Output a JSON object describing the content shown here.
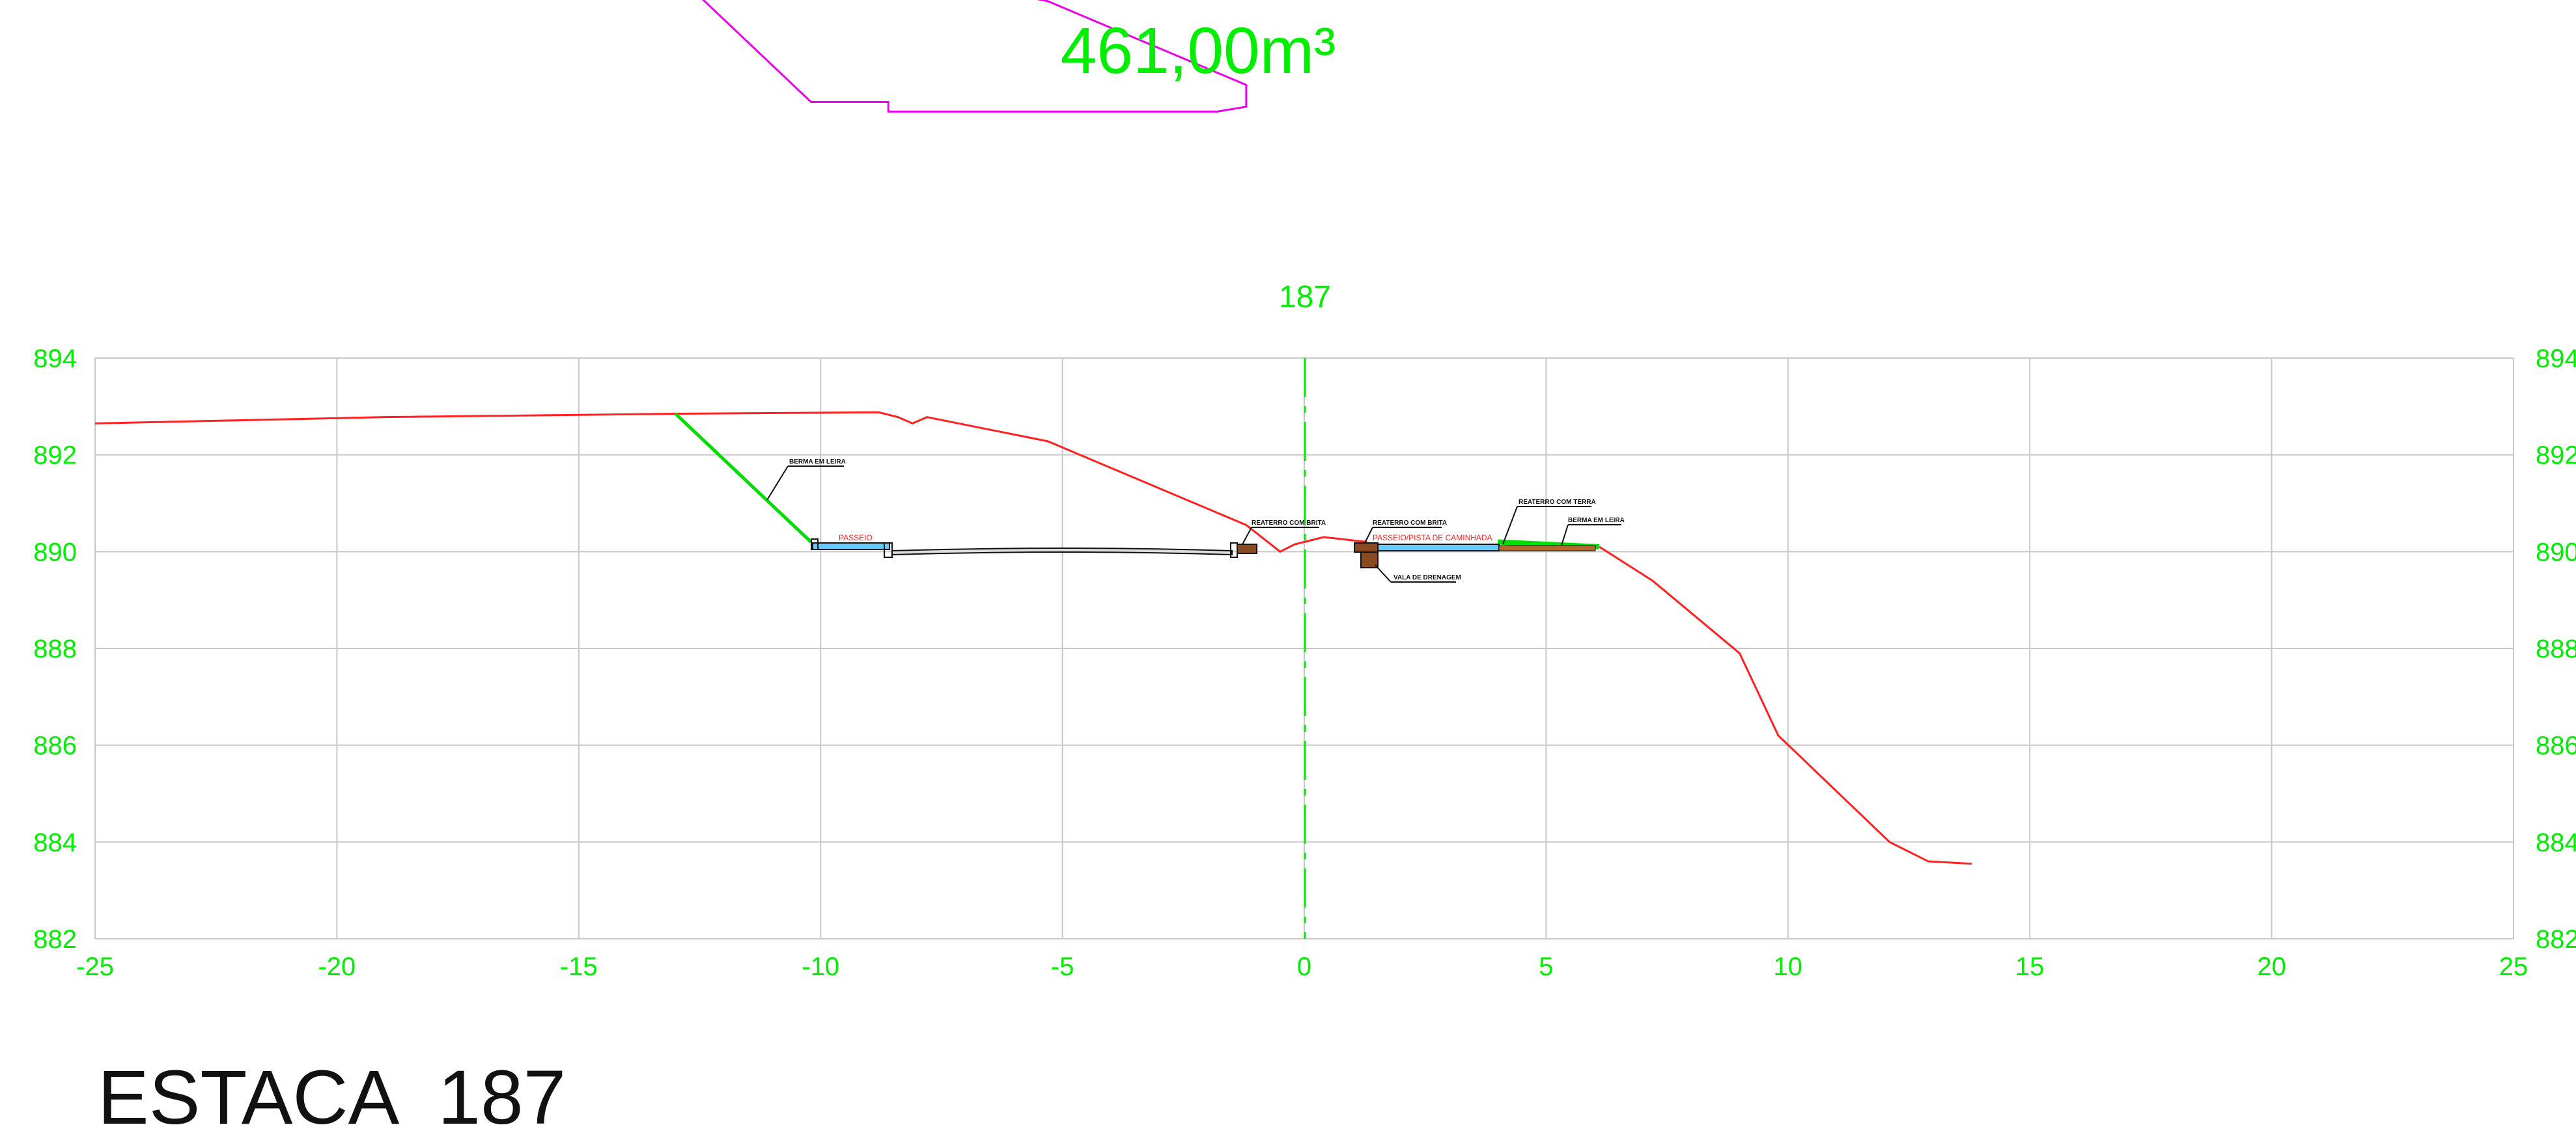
{
  "colors": {
    "background": "#ffffff",
    "grid": "#c8c8c8",
    "label_green": "#00ee00",
    "terrain_red": "#ff2020",
    "area_magenta": "#ee00ee",
    "slope_green": "#00dd00",
    "pavement_cyan": "#66ccff",
    "black": "#111111"
  },
  "volume_label": "461,00m³",
  "station_marker": "187",
  "title": "ESTACA  187",
  "x_ticks": [
    "-25",
    "-20",
    "-15",
    "-10",
    "-5",
    "0",
    "5",
    "10",
    "15",
    "20",
    "25"
  ],
  "y_ticks": [
    "894",
    "892",
    "890",
    "888",
    "886",
    "884",
    "882"
  ],
  "annotations": {
    "berm_left": "BERMA EM LEIRA",
    "sidewalk_left": "PASSEIO",
    "backfill_gravel_left": "REATERRO COM BRITA",
    "backfill_gravel_right": "REATERRO COM BRITA",
    "sidewalk_track_right": "PASSEIO/PISTA DE CAMINHADA",
    "backfill_soil": "REATERRO COM TERRA",
    "berm_right": "BERMA EM LEIRA",
    "drainage_trench": "VALA DE DRENAGEM"
  },
  "chart_data": {
    "type": "line",
    "xlim": [
      -25,
      25
    ],
    "ylim": [
      882,
      894
    ],
    "grid": true,
    "terrain": {
      "x": [
        -25,
        -19,
        -13,
        -8.8,
        -8.4,
        -8.1,
        -7.8,
        -5.3,
        -1.2,
        -0.5,
        -0.2,
        0.4,
        1.3
      ],
      "y": [
        892.65,
        892.78,
        892.85,
        892.88,
        892.78,
        892.65,
        892.78,
        892.28,
        890.55,
        890.0,
        890.15,
        890.3,
        890.2
      ]
    },
    "terrain_right": {
      "x": [
        6.1,
        7.2,
        9.0,
        9.8,
        12.1,
        12.9,
        13.8
      ],
      "y": [
        890.1,
        889.4,
        887.9,
        886.2,
        884.0,
        883.6,
        883.55
      ]
    },
    "cut_slope": {
      "x": [
        -13,
        -10.2
      ],
      "y": [
        892.85,
        890.2
      ]
    },
    "fill_slope_right": {
      "x": [
        4.0,
        6.1
      ],
      "y": [
        890.2,
        890.1
      ]
    },
    "area_region_points": {
      "x": [
        -13,
        -8.8,
        -8.4,
        -8.1,
        -7.8,
        -5.3,
        -1.2,
        -1.2,
        -1.8,
        -8.6,
        -8.6,
        -10.2
      ],
      "y": [
        892.85,
        892.88,
        892.78,
        892.65,
        892.78,
        892.28,
        890.55,
        890.1,
        890.0,
        890.0,
        890.2,
        890.2
      ]
    }
  }
}
